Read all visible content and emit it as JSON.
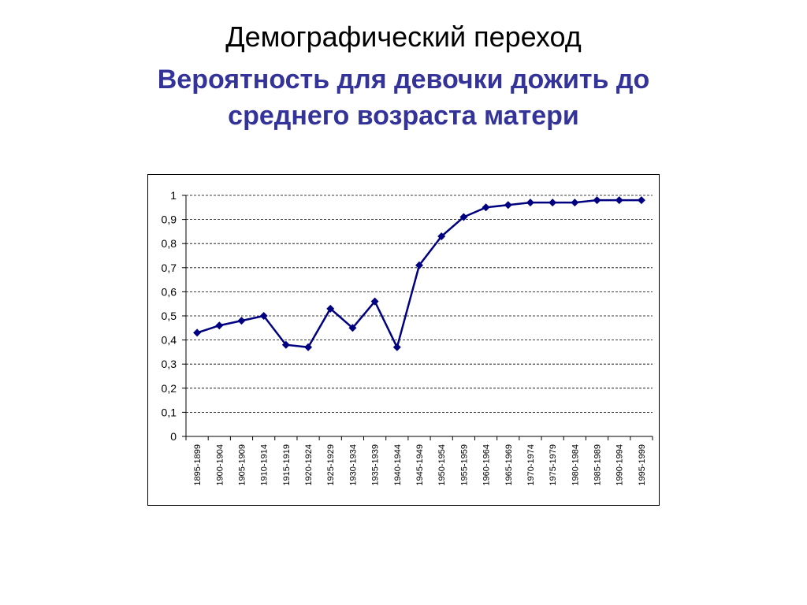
{
  "chart_data": {
    "type": "line",
    "title": "Демографический переход",
    "subtitle": "Вероятность для девочки дожить до среднего возраста матери",
    "categories": [
      "1895-1899",
      "1900-1904",
      "1905-1909",
      "1910-1914",
      "1915-1919",
      "1920-1924",
      "1925-1929",
      "1930-1934",
      "1935-1939",
      "1940-1944",
      "1945-1949",
      "1950-1954",
      "1955-1959",
      "1960-1964",
      "1965-1969",
      "1970-1974",
      "1975-1979",
      "1980-1984",
      "1985-1989",
      "1990-1994",
      "1995-1999"
    ],
    "values": [
      0.43,
      0.46,
      0.48,
      0.5,
      0.38,
      0.37,
      0.53,
      0.45,
      0.56,
      0.37,
      0.71,
      0.83,
      0.91,
      0.95,
      0.96,
      0.97,
      0.97,
      0.97,
      0.98,
      0.98,
      0.98
    ],
    "color": "#000080",
    "ylim": [
      0,
      1
    ],
    "yticks": [
      0,
      {
        "value": 0.1,
        "label": "0,1"
      },
      {
        "value": 0.2,
        "label": "0,2"
      },
      {
        "value": 0.3,
        "label": "0,3"
      },
      {
        "value": 0.4,
        "label": "0,4"
      },
      {
        "value": 0.5,
        "label": "0,5"
      },
      {
        "value": 0.6,
        "label": "0,6"
      },
      {
        "value": 0.7,
        "label": "0,7"
      },
      {
        "value": 0.8,
        "label": "0,8"
      },
      {
        "value": 0.9,
        "label": "0,9"
      },
      1
    ],
    "grid": true
  }
}
